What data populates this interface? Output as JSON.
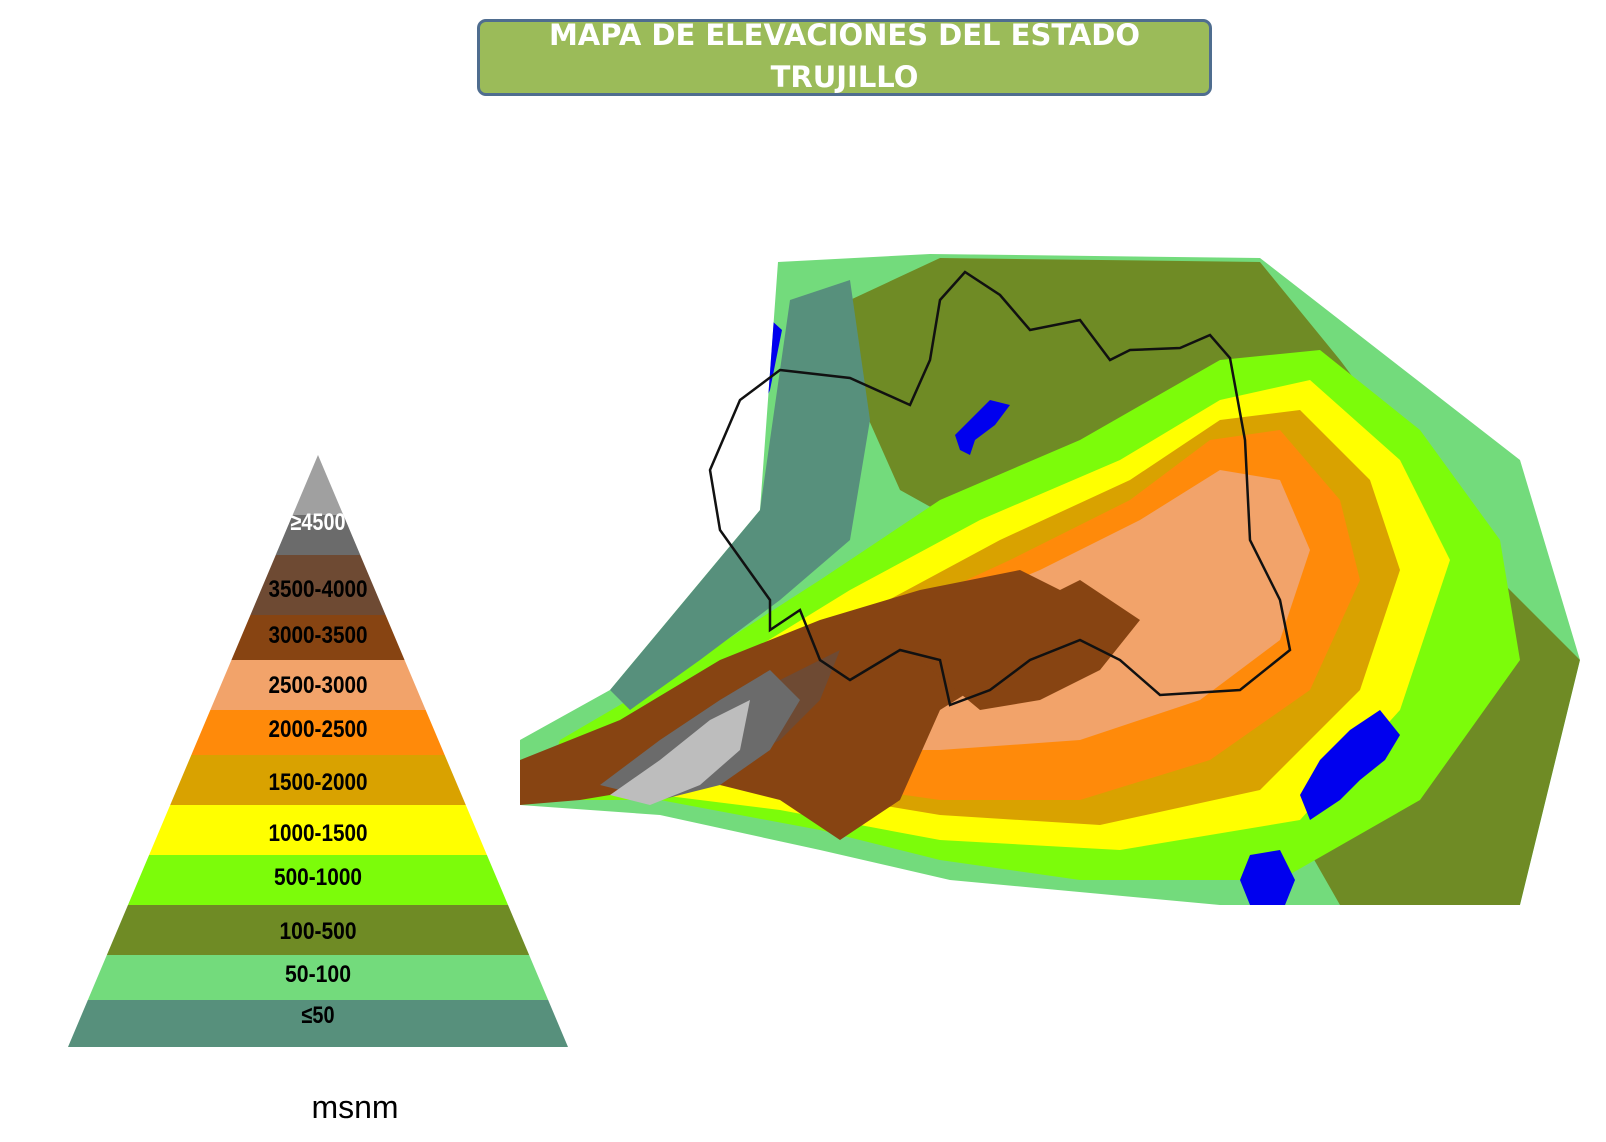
{
  "title": {
    "line1": "MAPA DE ELEVACIONES DEL ESTADO",
    "line2": "TRUJILLO"
  },
  "legend": {
    "unit": "msnm",
    "classes": [
      {
        "label": "≥4500",
        "color": "#6b6b6b"
      },
      {
        "label": "3500-4000",
        "color": "#6e4a33"
      },
      {
        "label": "3000-3500",
        "color": "#874412"
      },
      {
        "label": "2500-3000",
        "color": "#f2a36a"
      },
      {
        "label": "2000-2500",
        "color": "#ff8a0a"
      },
      {
        "label": "1500-2000",
        "color": "#d9a200"
      },
      {
        "label": "1000-1500",
        "color": "#ffff00"
      },
      {
        "label": "500-1000",
        "color": "#7cfc0a"
      },
      {
        "label": "100-500",
        "color": "#6f8b25"
      },
      {
        "label": "50-100",
        "color": "#73db7c"
      },
      {
        "label": "≤50",
        "color": "#57907c"
      }
    ]
  },
  "colors": {
    "water": "#0000ee",
    "state_border": "#111111",
    "title_fill": "#9bbb59",
    "title_border": "#4f6d8f"
  }
}
